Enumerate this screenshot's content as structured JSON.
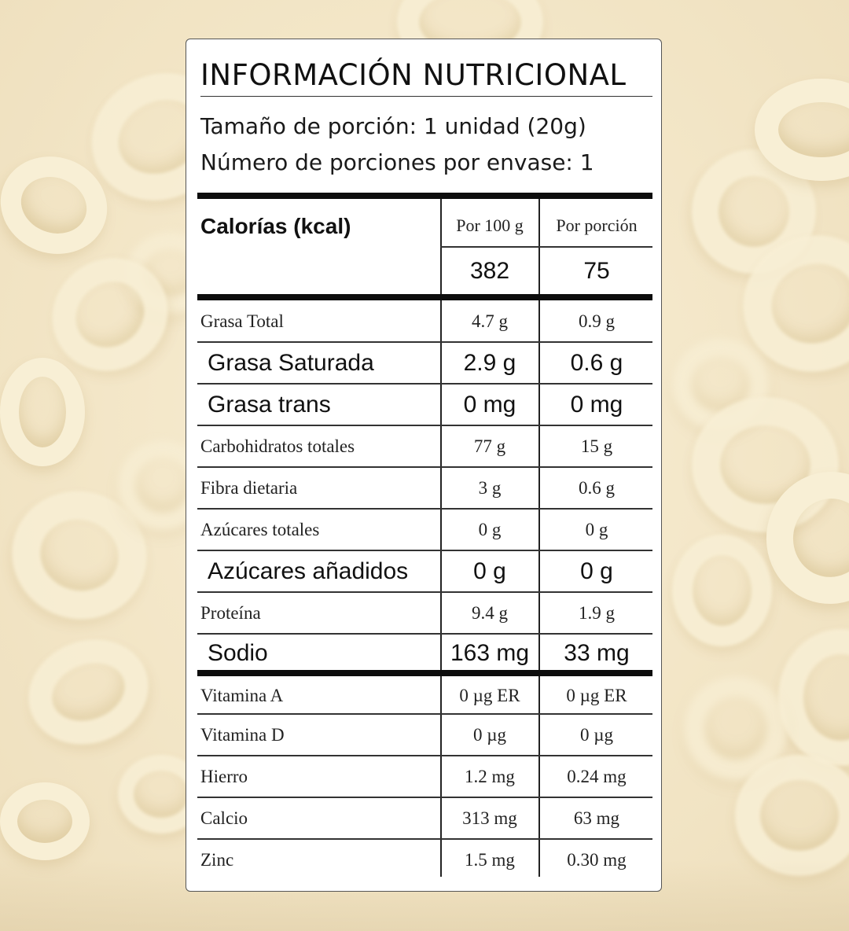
{
  "label": {
    "title": "INFORMACIÓN NUTRICIONAL",
    "serving_size": "Tamaño de porción: 1 unidad (20g)",
    "servings_per_container": "Número de porciones por envase: 1",
    "calories_label": "Calorías (kcal)",
    "column_headers": [
      "Por 100 g",
      "Por porción"
    ],
    "calories": {
      "per_100g": "382",
      "per_serving": "75"
    },
    "nutrients": [
      {
        "name": "Grasa Total",
        "per_100g": "4.7 g",
        "per_serving": "0.9 g",
        "emphasis": false
      },
      {
        "name": "Grasa Saturada",
        "per_100g": "2.9 g",
        "per_serving": "0.6 g",
        "emphasis": true
      },
      {
        "name": "Grasa trans",
        "per_100g": "0 mg",
        "per_serving": "0 mg",
        "emphasis": true
      },
      {
        "name": "Carbohidratos totales",
        "per_100g": "77 g",
        "per_serving": "15 g",
        "emphasis": false
      },
      {
        "name": "Fibra dietaria",
        "per_100g": "3 g",
        "per_serving": "0.6 g",
        "emphasis": false
      },
      {
        "name": "Azúcares totales",
        "per_100g": "0 g",
        "per_serving": "0 g",
        "emphasis": false
      },
      {
        "name": "Azúcares añadidos",
        "per_100g": "0 g",
        "per_serving": "0 g",
        "emphasis": true
      },
      {
        "name": "Proteína",
        "per_100g": "9.4 g",
        "per_serving": "1.9 g",
        "emphasis": false
      },
      {
        "name": "Sodio",
        "per_100g": "163 mg",
        "per_serving": "33 mg",
        "emphasis": true
      }
    ],
    "micronutrients": [
      {
        "name": "Vitamina A",
        "per_100g": "0 µg ER",
        "per_serving": "0 µg ER"
      },
      {
        "name": "Vitamina D",
        "per_100g": "0 µg",
        "per_serving": "0 µg"
      },
      {
        "name": "Hierro",
        "per_100g": "1.2 mg",
        "per_serving": "0.24 mg"
      },
      {
        "name": "Calcio",
        "per_100g": "313 mg",
        "per_serving": "63 mg"
      },
      {
        "name": "Zinc",
        "per_100g": "1.5 mg",
        "per_serving": "0.30 mg"
      }
    ]
  },
  "colors": {
    "background": "#f3e6c7",
    "ring": "#f8efd5",
    "panel": "#ffffff",
    "rule": "#0d0d0d"
  }
}
